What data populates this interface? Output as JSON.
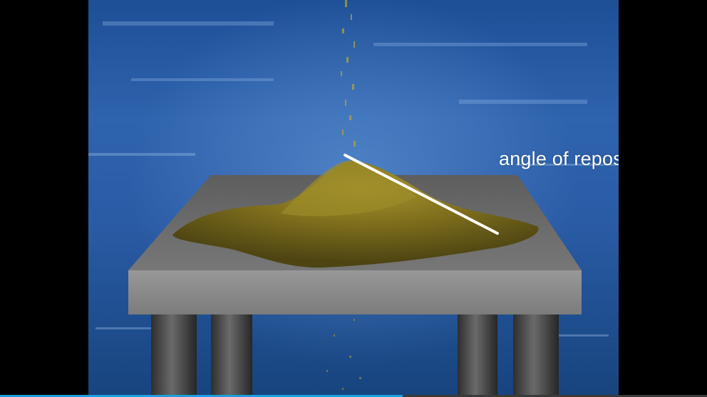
{
  "scene": {
    "annotation_label": "angle of repose",
    "colors": {
      "background_top": "#1d4f96",
      "background_bottom": "#17447e",
      "table_top": "#6e6e6e",
      "table_edge": "#8c8c8c",
      "sand": "#8a7a1e",
      "sand_highlight": "#b8a640",
      "repose_line": "#ffffff",
      "legs": "#4a4a4a"
    }
  },
  "player": {
    "progress_fraction": 0.57,
    "progress_color": "#1aa0e0"
  }
}
